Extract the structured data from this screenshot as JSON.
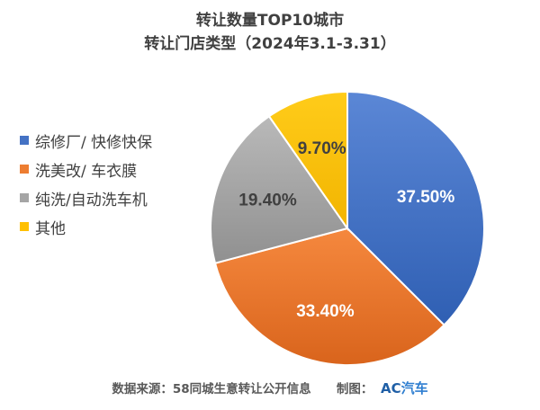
{
  "chart_data": {
    "type": "pie",
    "title": "转让数量TOP10城市",
    "subtitle": "转让门店类型（2024年3.1-3.31）",
    "categories": [
      "综修厂/ 快修快保",
      "洗美改/ 车衣膜",
      "纯洗/自动洗车机",
      "其他"
    ],
    "values": [
      37.5,
      33.4,
      19.4,
      9.7
    ],
    "value_labels": [
      "37.50%",
      "33.40%",
      "19.40%",
      "9.70%"
    ],
    "colors": [
      "#4472c4",
      "#ed7d31",
      "#a5a5a5",
      "#ffc000"
    ],
    "legend_position": "left"
  },
  "footer": {
    "source_text": "数据来源：58同城生意转让公开信息",
    "made_by_label": "制图：",
    "logo_a": "A",
    "logo_c": "C",
    "logo_rest": "汽车"
  }
}
